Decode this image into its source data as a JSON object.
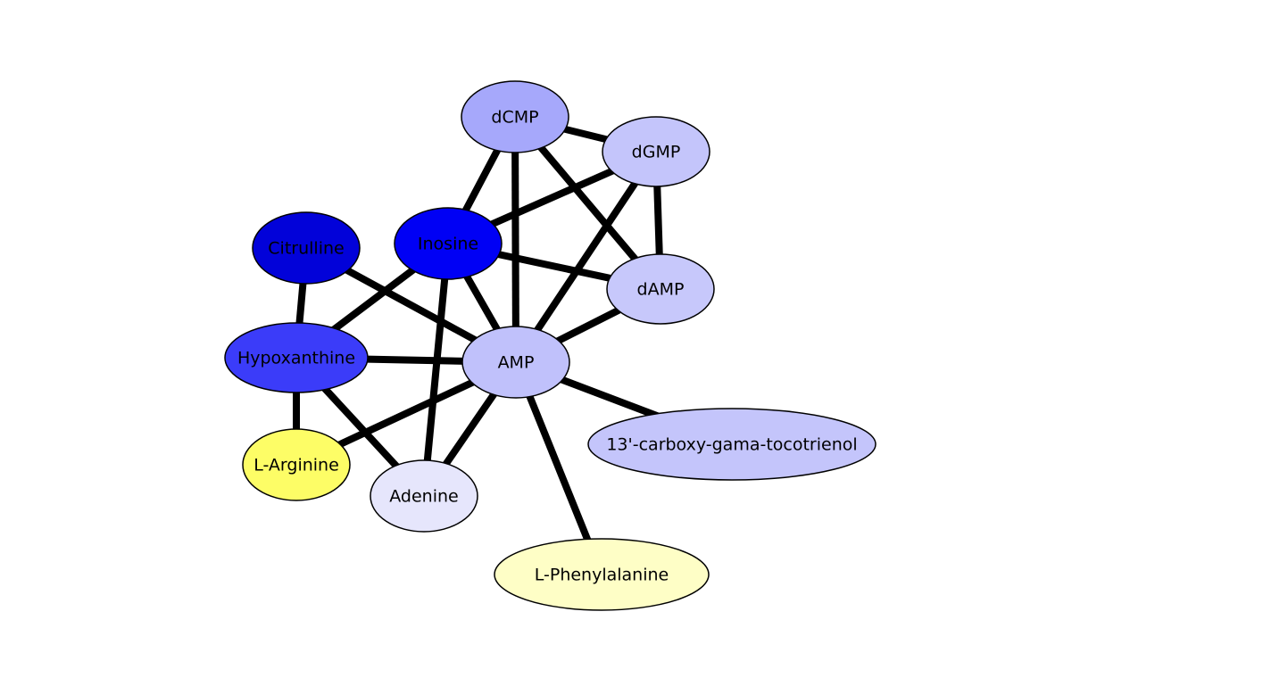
{
  "nodes": [
    {
      "id": "dCMP",
      "label": "dCMP",
      "color": "#a6a8fb"
    },
    {
      "id": "dGMP",
      "label": "dGMP",
      "color": "#c4c5fb"
    },
    {
      "id": "dAMP",
      "label": "dAMP",
      "color": "#c7c8fb"
    },
    {
      "id": "Inosine",
      "label": "Inosine",
      "color": "#0000f5"
    },
    {
      "id": "Citrulline",
      "label": "Citrulline",
      "color": "#0202d9"
    },
    {
      "id": "Hypoxanthine",
      "label": "Hypoxanthine",
      "color": "#3b3cf9"
    },
    {
      "id": "AMP",
      "label": "AMP",
      "color": "#c0c1fb"
    },
    {
      "id": "carboxy",
      "label": "13'-carboxy-gama-tocotrienol",
      "color": "#c4c5fb"
    },
    {
      "id": "LArginine",
      "label": "L-Arginine",
      "color": "#fdfd66"
    },
    {
      "id": "Adenine",
      "label": "Adenine",
      "color": "#e6e6fc"
    },
    {
      "id": "LPhenylalanine",
      "label": "L-Phenylalanine",
      "color": "#fefec6"
    }
  ],
  "edges": [
    [
      "dCMP",
      "dGMP"
    ],
    [
      "dCMP",
      "Inosine"
    ],
    [
      "dCMP",
      "AMP"
    ],
    [
      "dCMP",
      "dAMP"
    ],
    [
      "dGMP",
      "dAMP"
    ],
    [
      "dGMP",
      "Inosine"
    ],
    [
      "dGMP",
      "AMP"
    ],
    [
      "Inosine",
      "dAMP"
    ],
    [
      "Inosine",
      "AMP"
    ],
    [
      "Inosine",
      "Hypoxanthine"
    ],
    [
      "Inosine",
      "Adenine"
    ],
    [
      "Citrulline",
      "Hypoxanthine"
    ],
    [
      "Citrulline",
      "AMP"
    ],
    [
      "Hypoxanthine",
      "AMP"
    ],
    [
      "Hypoxanthine",
      "LArginine"
    ],
    [
      "Hypoxanthine",
      "Adenine"
    ],
    [
      "AMP",
      "dAMP"
    ],
    [
      "AMP",
      "LArginine"
    ],
    [
      "AMP",
      "Adenine"
    ],
    [
      "AMP",
      "carboxy"
    ],
    [
      "AMP",
      "LPhenylalanine"
    ]
  ]
}
